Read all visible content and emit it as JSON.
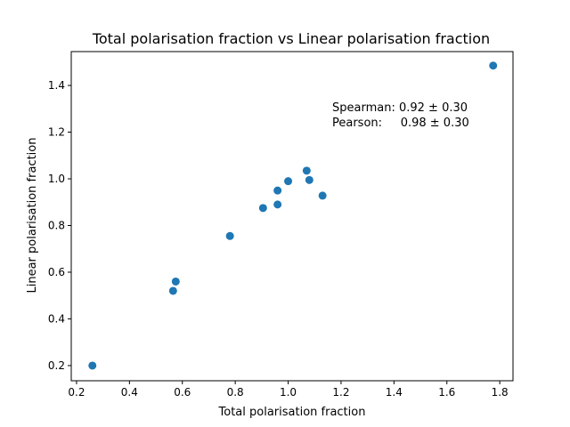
{
  "chart_data": {
    "type": "scatter",
    "title": "Total polarisation fraction vs Linear polarisation fraction",
    "xlabel": "Total polarisation fraction",
    "ylabel": "Linear polarisation fraction",
    "xlim": [
      0.18,
      1.85
    ],
    "ylim": [
      0.135,
      1.545
    ],
    "xticks": [
      0.2,
      0.4,
      0.6,
      0.8,
      1.0,
      1.2,
      1.4,
      1.6,
      1.8
    ],
    "xtick_labels": [
      "0.2",
      "0.4",
      "0.6",
      "0.8",
      "1.0",
      "1.2",
      "1.4",
      "1.6",
      "1.8"
    ],
    "yticks": [
      0.2,
      0.4,
      0.6,
      0.8,
      1.0,
      1.2,
      1.4
    ],
    "ytick_labels": [
      "0.2",
      "0.4",
      "0.6",
      "0.8",
      "1.0",
      "1.2",
      "1.4"
    ],
    "grid": false,
    "marker_color": "#1f77b4",
    "series": [
      {
        "x": [
          0.26,
          0.565,
          0.575,
          0.78,
          0.905,
          0.96,
          0.96,
          1.0,
          1.07,
          1.08,
          1.13,
          1.775
        ],
        "y": [
          0.2,
          0.52,
          0.56,
          0.755,
          0.875,
          0.89,
          0.95,
          0.99,
          1.035,
          0.995,
          0.928,
          1.485
        ]
      }
    ],
    "annotations": [
      "Spearman: 0.92 ± 0.30",
      "Pearson:     0.98 ± 0.30"
    ]
  }
}
